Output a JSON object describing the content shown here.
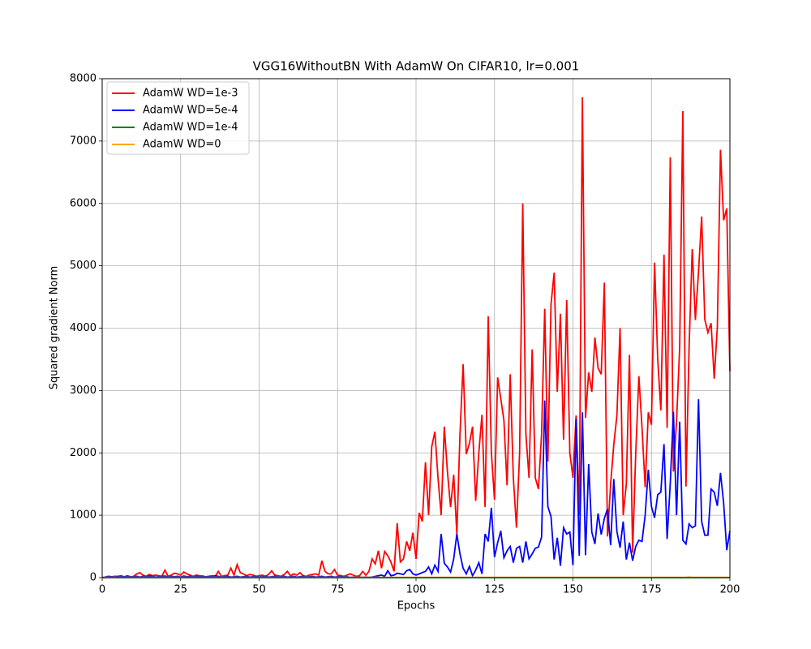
{
  "chart_data": {
    "type": "line",
    "title": "VGG16WithoutBN With AdamW On CIFAR10, lr=0.001",
    "x_label": "Epochs",
    "y_label": "Squared gradient Norm",
    "xlim": [
      0,
      200
    ],
    "ylim": [
      0,
      8000
    ],
    "xticks": [
      0,
      25,
      50,
      75,
      100,
      125,
      150,
      175,
      200
    ],
    "yticks": [
      0,
      1000,
      2000,
      3000,
      4000,
      5000,
      6000,
      7000,
      8000
    ],
    "grid": true,
    "legend": "upper left",
    "x": [
      0,
      1,
      2,
      3,
      4,
      5,
      6,
      7,
      8,
      9,
      10,
      11,
      12,
      13,
      14,
      15,
      16,
      17,
      18,
      19,
      20,
      21,
      22,
      23,
      24,
      25,
      26,
      27,
      28,
      29,
      30,
      31,
      32,
      33,
      34,
      35,
      36,
      37,
      38,
      39,
      40,
      41,
      42,
      43,
      44,
      45,
      46,
      47,
      48,
      49,
      50,
      51,
      52,
      53,
      54,
      55,
      56,
      57,
      58,
      59,
      60,
      61,
      62,
      63,
      64,
      65,
      66,
      67,
      68,
      69,
      70,
      71,
      72,
      73,
      74,
      75,
      76,
      77,
      78,
      79,
      80,
      81,
      82,
      83,
      84,
      85,
      86,
      87,
      88,
      89,
      90,
      91,
      92,
      93,
      94,
      95,
      96,
      97,
      98,
      99,
      100,
      101,
      102,
      103,
      104,
      105,
      106,
      107,
      108,
      109,
      110,
      111,
      112,
      113,
      114,
      115,
      116,
      117,
      118,
      119,
      120,
      121,
      122,
      123,
      124,
      125,
      126,
      127,
      128,
      129,
      130,
      131,
      132,
      133,
      134,
      135,
      136,
      137,
      138,
      139,
      140,
      141,
      142,
      143,
      144,
      145,
      146,
      147,
      148,
      149,
      150,
      151,
      152,
      153,
      154,
      155,
      156,
      157,
      158,
      159,
      160,
      161,
      162,
      163,
      164,
      165,
      166,
      167,
      168,
      169,
      170,
      171,
      172,
      173,
      174,
      175,
      176,
      177,
      178,
      179,
      180,
      181,
      182,
      183,
      184,
      185,
      186,
      187,
      188,
      189,
      190,
      191,
      192,
      193,
      194,
      195,
      196,
      197,
      198,
      199,
      200
    ],
    "series": [
      {
        "name": "AdamW WD=1e-3",
        "color": "#ff0000",
        "values": [
          0,
          5,
          10,
          15,
          20,
          20,
          25,
          10,
          30,
          15,
          20,
          60,
          80,
          40,
          20,
          50,
          30,
          40,
          30,
          20,
          120,
          20,
          40,
          70,
          60,
          40,
          90,
          60,
          40,
          20,
          40,
          30,
          20,
          15,
          20,
          30,
          20,
          100,
          20,
          30,
          40,
          150,
          40,
          210,
          80,
          60,
          30,
          50,
          40,
          20,
          30,
          40,
          20,
          50,
          110,
          40,
          30,
          20,
          50,
          100,
          30,
          60,
          40,
          80,
          30,
          20,
          40,
          50,
          60,
          40,
          270,
          100,
          60,
          60,
          130,
          40,
          30,
          20,
          40,
          60,
          40,
          20,
          30,
          100,
          40,
          100,
          300,
          220,
          430,
          150,
          420,
          350,
          250,
          100,
          870,
          250,
          300,
          580,
          430,
          720,
          300,
          1040,
          900,
          1850,
          1000,
          2100,
          2340,
          1600,
          1000,
          2420,
          1700,
          1130,
          1650,
          700,
          2300,
          3420,
          1980,
          2150,
          2420,
          1230,
          2000,
          2610,
          1130,
          4190,
          2000,
          1250,
          3210,
          2870,
          2520,
          1480,
          3260,
          1600,
          800,
          2000,
          6000,
          2300,
          1600,
          3660,
          1600,
          1420,
          2300,
          4310,
          1860,
          4380,
          4890,
          2980,
          4230,
          2210,
          4450,
          2000,
          1600,
          2600,
          1000,
          7700,
          2560,
          3290,
          2980,
          3850,
          3360,
          3260,
          4730,
          660,
          1500,
          2130,
          2600,
          4000,
          1000,
          1500,
          3570,
          400,
          2000,
          3230,
          2400,
          1450,
          2650,
          2450,
          5050,
          3500,
          2680,
          5180,
          2400,
          6740,
          1700,
          2500,
          3700,
          7480,
          1460,
          3700,
          5270,
          4130,
          4900,
          5790,
          4140,
          3930,
          4080,
          3190,
          4020,
          6860,
          5730,
          5920,
          3310
        ]
      },
      {
        "name": "AdamW WD=5e-4",
        "color": "#0000ff",
        "values": [
          0,
          10,
          20,
          15,
          10,
          20,
          25,
          15,
          20,
          10,
          15,
          20,
          10,
          20,
          15,
          25,
          20,
          10,
          15,
          20,
          25,
          10,
          20,
          15,
          20,
          10,
          25,
          15,
          20,
          10,
          20,
          15,
          25,
          10,
          20,
          15,
          30,
          20,
          10,
          15,
          20,
          10,
          15,
          20,
          10,
          15,
          20,
          10,
          15,
          20,
          10,
          15,
          20,
          10,
          15,
          20,
          10,
          15,
          20,
          10,
          15,
          20,
          10,
          15,
          20,
          10,
          15,
          20,
          10,
          15,
          20,
          10,
          15,
          20,
          10,
          15,
          20,
          10,
          15,
          5,
          10,
          5,
          10,
          5,
          10,
          5,
          10,
          20,
          30,
          40,
          20,
          110,
          30,
          40,
          70,
          60,
          50,
          110,
          130,
          60,
          40,
          60,
          80,
          100,
          170,
          60,
          200,
          100,
          700,
          230,
          170,
          90,
          300,
          700,
          380,
          150,
          60,
          180,
          30,
          120,
          240,
          60,
          700,
          580,
          1120,
          330,
          560,
          750,
          320,
          430,
          500,
          240,
          470,
          500,
          240,
          580,
          300,
          380,
          470,
          490,
          650,
          2840,
          1140,
          980,
          290,
          640,
          190,
          800,
          700,
          730,
          200,
          2550,
          350,
          2650,
          360,
          1820,
          730,
          540,
          1030,
          690,
          950,
          1100,
          520,
          1580,
          740,
          480,
          900,
          290,
          560,
          270,
          500,
          600,
          580,
          1000,
          1730,
          1140,
          960,
          1330,
          1370,
          2140,
          620,
          1510,
          2660,
          1000,
          2500,
          600,
          540,
          860,
          800,
          830,
          2860,
          900,
          680,
          680,
          1420,
          1370,
          1150,
          1680,
          1200,
          440,
          750
        ]
      },
      {
        "name": "AdamW WD=1e-4",
        "color": "#008000",
        "values": [
          0,
          0,
          0,
          0,
          0,
          0,
          0,
          0,
          0,
          0,
          0,
          0,
          0,
          0,
          0,
          0,
          0,
          0,
          0,
          0,
          0,
          0,
          0,
          0,
          0,
          0,
          0,
          0,
          0,
          0,
          0,
          0,
          0,
          0,
          0,
          0,
          0,
          0,
          0,
          0,
          0,
          0,
          0,
          0,
          0,
          0,
          0,
          0,
          0,
          0,
          0,
          0,
          0,
          0,
          0,
          0,
          0,
          0,
          0,
          0,
          0,
          0,
          0,
          0,
          0,
          0,
          0,
          0,
          0,
          0,
          0,
          0,
          0,
          0,
          0,
          0,
          0,
          0,
          0,
          0,
          0,
          0,
          0,
          0,
          0,
          0,
          0,
          0,
          0,
          0,
          0,
          0,
          0,
          0,
          0,
          0,
          0,
          0,
          0,
          0,
          0,
          0,
          0,
          0,
          0,
          0,
          0,
          0,
          0,
          0,
          0,
          0,
          0,
          0,
          0,
          0,
          0,
          0,
          0,
          0,
          0,
          0,
          0,
          0,
          0,
          0,
          0,
          0,
          0,
          0,
          0,
          0,
          0,
          0,
          0,
          0,
          0,
          0,
          0,
          0,
          0,
          0,
          0,
          0,
          0,
          0,
          0,
          0,
          0,
          0,
          0,
          0,
          0,
          0,
          0,
          0,
          0,
          0,
          0,
          0,
          0,
          0,
          0,
          0,
          0,
          0,
          0,
          0,
          0,
          0,
          0,
          0,
          0,
          0,
          0,
          0,
          0,
          0,
          0,
          0,
          0,
          0,
          0,
          0,
          0,
          0,
          0,
          0,
          0,
          0,
          0,
          0,
          0,
          0,
          0,
          0,
          0,
          0,
          0,
          0,
          0
        ]
      },
      {
        "name": "AdamW WD=0",
        "color": "#ffa500",
        "values": [
          5,
          5,
          5,
          5,
          5,
          5,
          5,
          5,
          5,
          5,
          5,
          5,
          5,
          5,
          5,
          5,
          5,
          5,
          5,
          5,
          5,
          5,
          5,
          5,
          5,
          5,
          5,
          5,
          5,
          5,
          5,
          5,
          5,
          5,
          5,
          5,
          5,
          5,
          5,
          5,
          5,
          5,
          5,
          5,
          5,
          5,
          5,
          5,
          5,
          5,
          5,
          5,
          5,
          5,
          5,
          5,
          5,
          5,
          5,
          5,
          5,
          5,
          5,
          5,
          5,
          5,
          5,
          5,
          5,
          5,
          5,
          5,
          5,
          5,
          5,
          5,
          5,
          5,
          5,
          5,
          5,
          5,
          5,
          5,
          5,
          5,
          5,
          5,
          5,
          5,
          5,
          5,
          5,
          5,
          5,
          5,
          5,
          5,
          5,
          5,
          5,
          5,
          5,
          5,
          5,
          5,
          5,
          5,
          5,
          5,
          5,
          5,
          5,
          5,
          5,
          5,
          5,
          5,
          5,
          5,
          5,
          5,
          5,
          5,
          5,
          5,
          5,
          5,
          5,
          5,
          5,
          5,
          5,
          5,
          5,
          5,
          5,
          5,
          5,
          5,
          5,
          5,
          5,
          5,
          5,
          5,
          5,
          5,
          5,
          5,
          5,
          5,
          5,
          5,
          5,
          5,
          5,
          5,
          5,
          5,
          5,
          5,
          5,
          5,
          5,
          5,
          5,
          5,
          5,
          5,
          5,
          5,
          5,
          5,
          5,
          5,
          5,
          5,
          5,
          5,
          5,
          5,
          5,
          5,
          5,
          5,
          5,
          10,
          5,
          5,
          5,
          5,
          5,
          5,
          5,
          5,
          5,
          5,
          5,
          5,
          5
        ]
      }
    ]
  }
}
